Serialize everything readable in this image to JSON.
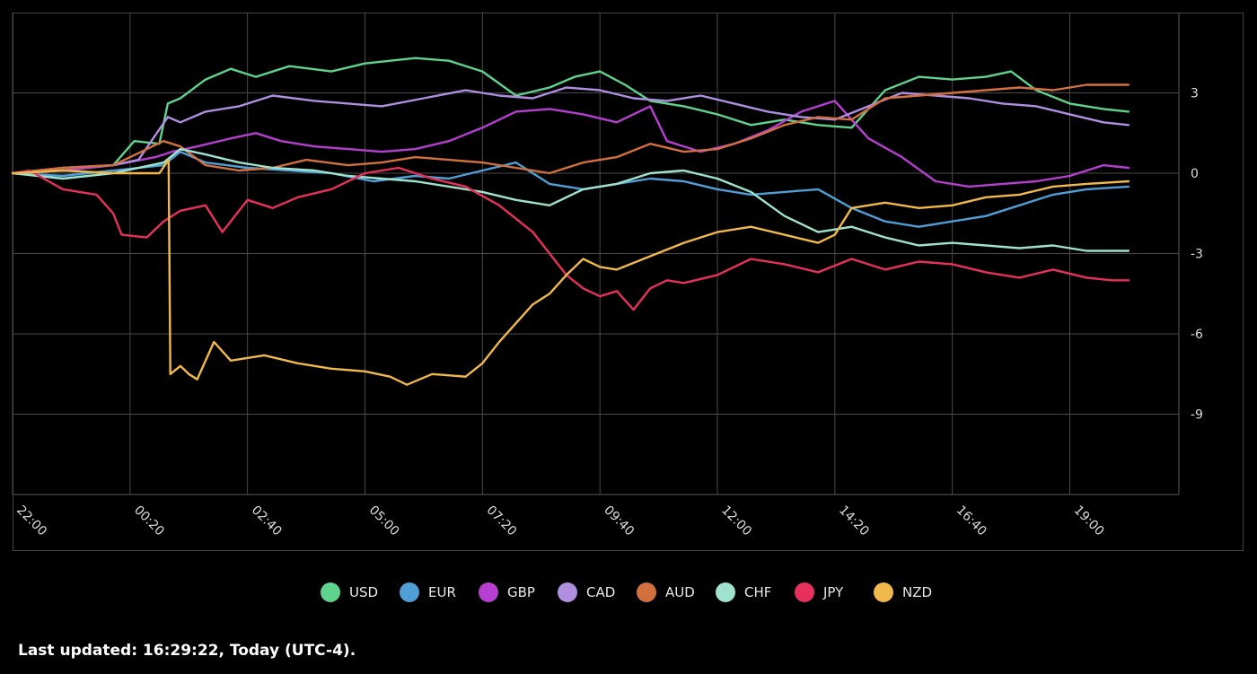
{
  "footer": {
    "last_updated": "Last updated: 16:29:22, Today (UTC-4)."
  },
  "chart_data": {
    "type": "line",
    "title": "",
    "xlabel": "",
    "ylabel": "",
    "x_ticks": [
      "22:00",
      "00:20",
      "02:40",
      "05:00",
      "07:20",
      "09:40",
      "12:00",
      "14:20",
      "16:40",
      "19:00"
    ],
    "y_ticks": [
      3,
      0,
      -3,
      -6,
      -9
    ],
    "ylim": [
      -12,
      6
    ],
    "x_range_minutes": [
      0,
      1390
    ],
    "grid": true,
    "legend_position": "bottom-center",
    "series": [
      {
        "name": "USD",
        "color": "#5fd38d",
        "points": [
          [
            0,
            0
          ],
          [
            60,
            0.1
          ],
          [
            120,
            0.3
          ],
          [
            145,
            1.2
          ],
          [
            175,
            1.1
          ],
          [
            185,
            2.6
          ],
          [
            200,
            2.8
          ],
          [
            230,
            3.5
          ],
          [
            260,
            3.9
          ],
          [
            290,
            3.6
          ],
          [
            330,
            4.0
          ],
          [
            380,
            3.8
          ],
          [
            420,
            4.1
          ],
          [
            480,
            4.3
          ],
          [
            520,
            4.2
          ],
          [
            560,
            3.8
          ],
          [
            600,
            2.9
          ],
          [
            640,
            3.2
          ],
          [
            670,
            3.6
          ],
          [
            700,
            3.8
          ],
          [
            730,
            3.3
          ],
          [
            760,
            2.7
          ],
          [
            800,
            2.5
          ],
          [
            840,
            2.2
          ],
          [
            880,
            1.8
          ],
          [
            920,
            2.0
          ],
          [
            960,
            1.8
          ],
          [
            1000,
            1.7
          ],
          [
            1040,
            3.1
          ],
          [
            1080,
            3.6
          ],
          [
            1120,
            3.5
          ],
          [
            1160,
            3.6
          ],
          [
            1190,
            3.8
          ],
          [
            1220,
            3.1
          ],
          [
            1260,
            2.6
          ],
          [
            1300,
            2.4
          ],
          [
            1330,
            2.3
          ]
        ]
      },
      {
        "name": "EUR",
        "color": "#4f9fd6",
        "points": [
          [
            0,
            0
          ],
          [
            60,
            -0.1
          ],
          [
            120,
            0.1
          ],
          [
            180,
            0.3
          ],
          [
            200,
            0.8
          ],
          [
            230,
            0.4
          ],
          [
            280,
            0.2
          ],
          [
            330,
            0.1
          ],
          [
            380,
            0.0
          ],
          [
            430,
            -0.3
          ],
          [
            480,
            -0.1
          ],
          [
            520,
            -0.2
          ],
          [
            560,
            0.1
          ],
          [
            600,
            0.4
          ],
          [
            640,
            -0.4
          ],
          [
            680,
            -0.6
          ],
          [
            720,
            -0.4
          ],
          [
            760,
            -0.2
          ],
          [
            800,
            -0.3
          ],
          [
            840,
            -0.6
          ],
          [
            880,
            -0.8
          ],
          [
            920,
            -0.7
          ],
          [
            960,
            -0.6
          ],
          [
            1000,
            -1.3
          ],
          [
            1040,
            -1.8
          ],
          [
            1080,
            -2.0
          ],
          [
            1120,
            -1.8
          ],
          [
            1160,
            -1.6
          ],
          [
            1200,
            -1.2
          ],
          [
            1240,
            -0.8
          ],
          [
            1280,
            -0.6
          ],
          [
            1330,
            -0.5
          ]
        ]
      },
      {
        "name": "GBP",
        "color": "#b63fd1",
        "points": [
          [
            0,
            0
          ],
          [
            60,
            0.1
          ],
          [
            120,
            0.3
          ],
          [
            170,
            0.6
          ],
          [
            190,
            0.8
          ],
          [
            220,
            1.0
          ],
          [
            260,
            1.3
          ],
          [
            290,
            1.5
          ],
          [
            320,
            1.2
          ],
          [
            360,
            1.0
          ],
          [
            400,
            0.9
          ],
          [
            440,
            0.8
          ],
          [
            480,
            0.9
          ],
          [
            520,
            1.2
          ],
          [
            560,
            1.7
          ],
          [
            600,
            2.3
          ],
          [
            640,
            2.4
          ],
          [
            680,
            2.2
          ],
          [
            720,
            1.9
          ],
          [
            760,
            2.5
          ],
          [
            780,
            1.2
          ],
          [
            820,
            0.8
          ],
          [
            860,
            1.1
          ],
          [
            900,
            1.6
          ],
          [
            940,
            2.3
          ],
          [
            980,
            2.7
          ],
          [
            1020,
            1.3
          ],
          [
            1060,
            0.6
          ],
          [
            1100,
            -0.3
          ],
          [
            1140,
            -0.5
          ],
          [
            1180,
            -0.4
          ],
          [
            1220,
            -0.3
          ],
          [
            1260,
            -0.1
          ],
          [
            1300,
            0.3
          ],
          [
            1330,
            0.2
          ]
        ]
      },
      {
        "name": "CAD",
        "color": "#b08ee0",
        "points": [
          [
            0,
            0
          ],
          [
            60,
            0.2
          ],
          [
            120,
            0.3
          ],
          [
            150,
            0.5
          ],
          [
            185,
            2.1
          ],
          [
            200,
            1.9
          ],
          [
            230,
            2.3
          ],
          [
            270,
            2.5
          ],
          [
            310,
            2.9
          ],
          [
            360,
            2.7
          ],
          [
            400,
            2.6
          ],
          [
            440,
            2.5
          ],
          [
            490,
            2.8
          ],
          [
            540,
            3.1
          ],
          [
            580,
            2.9
          ],
          [
            620,
            2.8
          ],
          [
            660,
            3.2
          ],
          [
            700,
            3.1
          ],
          [
            740,
            2.8
          ],
          [
            780,
            2.7
          ],
          [
            820,
            2.9
          ],
          [
            860,
            2.6
          ],
          [
            900,
            2.3
          ],
          [
            940,
            2.1
          ],
          [
            980,
            2.0
          ],
          [
            1020,
            2.5
          ],
          [
            1060,
            3.0
          ],
          [
            1100,
            2.9
          ],
          [
            1140,
            2.8
          ],
          [
            1180,
            2.6
          ],
          [
            1220,
            2.5
          ],
          [
            1260,
            2.2
          ],
          [
            1300,
            1.9
          ],
          [
            1330,
            1.8
          ]
        ]
      },
      {
        "name": "AUD",
        "color": "#d2703e",
        "points": [
          [
            0,
            0
          ],
          [
            60,
            0.2
          ],
          [
            120,
            0.3
          ],
          [
            180,
            1.2
          ],
          [
            200,
            1.0
          ],
          [
            230,
            0.3
          ],
          [
            270,
            0.1
          ],
          [
            310,
            0.2
          ],
          [
            350,
            0.5
          ],
          [
            400,
            0.3
          ],
          [
            440,
            0.4
          ],
          [
            480,
            0.6
          ],
          [
            520,
            0.5
          ],
          [
            560,
            0.4
          ],
          [
            600,
            0.2
          ],
          [
            640,
            0.0
          ],
          [
            680,
            0.4
          ],
          [
            720,
            0.6
          ],
          [
            760,
            1.1
          ],
          [
            800,
            0.8
          ],
          [
            840,
            0.9
          ],
          [
            880,
            1.3
          ],
          [
            920,
            1.8
          ],
          [
            960,
            2.1
          ],
          [
            1000,
            2.0
          ],
          [
            1040,
            2.8
          ],
          [
            1080,
            2.9
          ],
          [
            1120,
            3.0
          ],
          [
            1160,
            3.1
          ],
          [
            1200,
            3.2
          ],
          [
            1240,
            3.1
          ],
          [
            1280,
            3.3
          ],
          [
            1330,
            3.3
          ]
        ]
      },
      {
        "name": "CHF",
        "color": "#9fe3cf",
        "points": [
          [
            0,
            0
          ],
          [
            60,
            -0.2
          ],
          [
            120,
            0.0
          ],
          [
            180,
            0.4
          ],
          [
            200,
            0.9
          ],
          [
            230,
            0.7
          ],
          [
            270,
            0.4
          ],
          [
            310,
            0.2
          ],
          [
            360,
            0.1
          ],
          [
            400,
            -0.1
          ],
          [
            440,
            -0.2
          ],
          [
            480,
            -0.3
          ],
          [
            520,
            -0.5
          ],
          [
            560,
            -0.7
          ],
          [
            600,
            -1.0
          ],
          [
            640,
            -1.2
          ],
          [
            680,
            -0.6
          ],
          [
            720,
            -0.4
          ],
          [
            760,
            0.0
          ],
          [
            800,
            0.1
          ],
          [
            840,
            -0.2
          ],
          [
            880,
            -0.7
          ],
          [
            920,
            -1.6
          ],
          [
            960,
            -2.2
          ],
          [
            1000,
            -2.0
          ],
          [
            1040,
            -2.4
          ],
          [
            1080,
            -2.7
          ],
          [
            1120,
            -2.6
          ],
          [
            1160,
            -2.7
          ],
          [
            1200,
            -2.8
          ],
          [
            1240,
            -2.7
          ],
          [
            1280,
            -2.9
          ],
          [
            1330,
            -2.9
          ]
        ]
      },
      {
        "name": "JPY",
        "color": "#e8315a",
        "points": [
          [
            0,
            0
          ],
          [
            20,
            0.1
          ],
          [
            60,
            -0.6
          ],
          [
            100,
            -0.8
          ],
          [
            120,
            -1.5
          ],
          [
            130,
            -2.3
          ],
          [
            160,
            -2.4
          ],
          [
            180,
            -1.8
          ],
          [
            200,
            -1.4
          ],
          [
            230,
            -1.2
          ],
          [
            250,
            -2.2
          ],
          [
            280,
            -1.0
          ],
          [
            310,
            -1.3
          ],
          [
            340,
            -0.9
          ],
          [
            380,
            -0.6
          ],
          [
            420,
            0.0
          ],
          [
            460,
            0.2
          ],
          [
            500,
            -0.2
          ],
          [
            540,
            -0.5
          ],
          [
            580,
            -1.2
          ],
          [
            620,
            -2.2
          ],
          [
            640,
            -3.0
          ],
          [
            660,
            -3.8
          ],
          [
            680,
            -4.3
          ],
          [
            700,
            -4.6
          ],
          [
            720,
            -4.4
          ],
          [
            740,
            -5.1
          ],
          [
            760,
            -4.3
          ],
          [
            780,
            -4.0
          ],
          [
            800,
            -4.1
          ],
          [
            840,
            -3.8
          ],
          [
            880,
            -3.2
          ],
          [
            920,
            -3.4
          ],
          [
            960,
            -3.7
          ],
          [
            1000,
            -3.2
          ],
          [
            1040,
            -3.6
          ],
          [
            1080,
            -3.3
          ],
          [
            1120,
            -3.4
          ],
          [
            1160,
            -3.7
          ],
          [
            1200,
            -3.9
          ],
          [
            1240,
            -3.6
          ],
          [
            1280,
            -3.9
          ],
          [
            1310,
            -4.0
          ],
          [
            1330,
            -4.0
          ]
        ]
      },
      {
        "name": "NZD",
        "color": "#f1b84b",
        "points": [
          [
            0,
            0
          ],
          [
            60,
            0.1
          ],
          [
            120,
            0.0
          ],
          [
            175,
            0.0
          ],
          [
            186,
            0.5
          ],
          [
            188,
            -7.5
          ],
          [
            200,
            -7.2
          ],
          [
            210,
            -7.5
          ],
          [
            220,
            -7.7
          ],
          [
            240,
            -6.3
          ],
          [
            260,
            -7.0
          ],
          [
            300,
            -6.8
          ],
          [
            340,
            -7.1
          ],
          [
            380,
            -7.3
          ],
          [
            420,
            -7.4
          ],
          [
            450,
            -7.6
          ],
          [
            470,
            -7.9
          ],
          [
            500,
            -7.5
          ],
          [
            540,
            -7.6
          ],
          [
            560,
            -7.1
          ],
          [
            580,
            -6.3
          ],
          [
            600,
            -5.6
          ],
          [
            620,
            -4.9
          ],
          [
            640,
            -4.5
          ],
          [
            660,
            -3.8
          ],
          [
            680,
            -3.2
          ],
          [
            700,
            -3.5
          ],
          [
            720,
            -3.6
          ],
          [
            760,
            -3.1
          ],
          [
            800,
            -2.6
          ],
          [
            840,
            -2.2
          ],
          [
            880,
            -2.0
          ],
          [
            920,
            -2.3
          ],
          [
            960,
            -2.6
          ],
          [
            980,
            -2.3
          ],
          [
            1000,
            -1.3
          ],
          [
            1040,
            -1.1
          ],
          [
            1080,
            -1.3
          ],
          [
            1120,
            -1.2
          ],
          [
            1160,
            -0.9
          ],
          [
            1200,
            -0.8
          ],
          [
            1240,
            -0.5
          ],
          [
            1280,
            -0.4
          ],
          [
            1330,
            -0.3
          ]
        ]
      }
    ]
  }
}
